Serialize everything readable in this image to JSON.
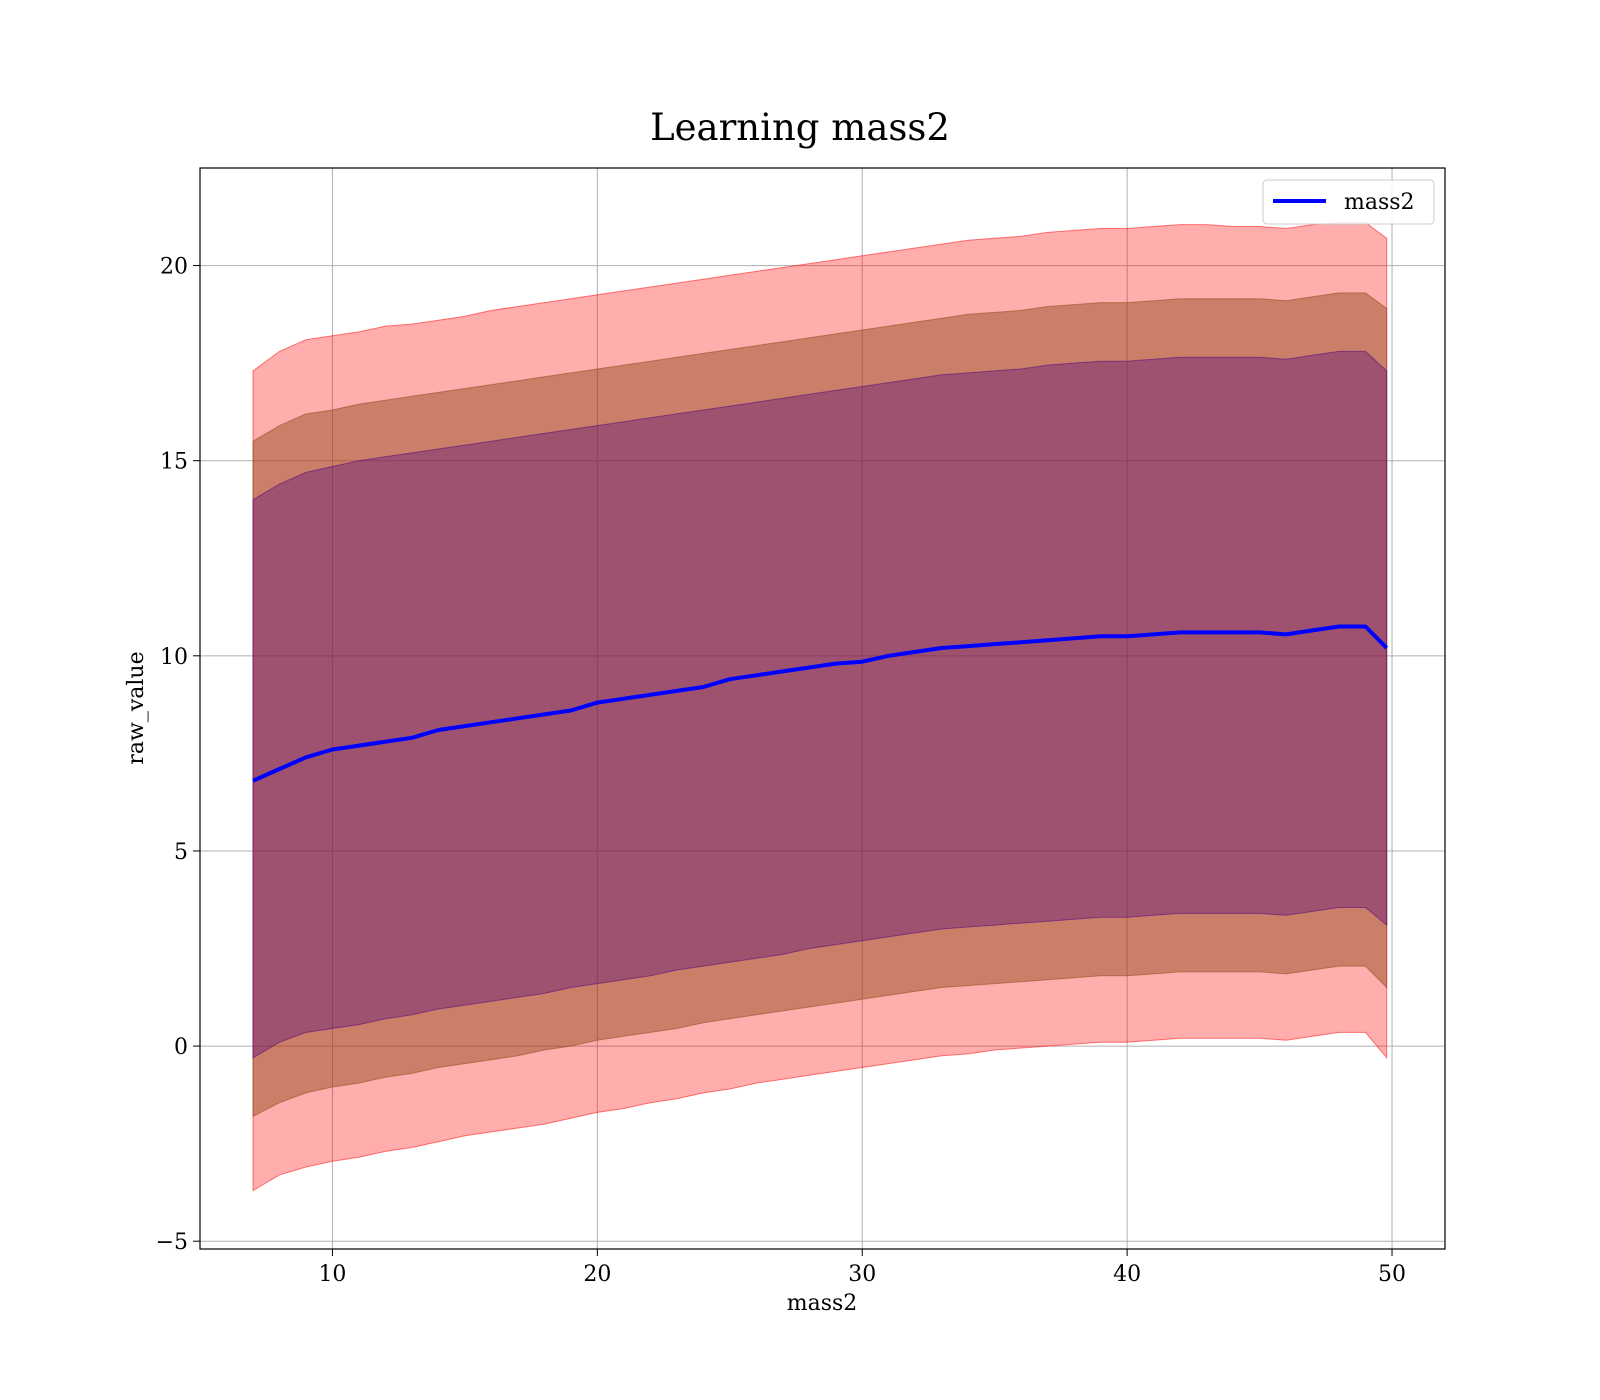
{
  "chart_data": {
    "type": "line",
    "title": "Learning mass2",
    "xlabel": "mass2",
    "ylabel": "raw_value",
    "xlim": [
      5,
      52
    ],
    "ylim": [
      -5.2,
      22.5
    ],
    "x_ticks": [
      10,
      20,
      30,
      40,
      50
    ],
    "y_ticks": [
      -5,
      0,
      5,
      10,
      15,
      20
    ],
    "grid": true,
    "legend": {
      "position": "top-right",
      "entries": [
        "mass2"
      ]
    },
    "series": [
      {
        "name": "mass2",
        "color": "#0000ff",
        "x": [
          7,
          8,
          9,
          10,
          11,
          12,
          13,
          14,
          15,
          16,
          17,
          18,
          19,
          20,
          21,
          22,
          23,
          24,
          25,
          26,
          27,
          28,
          29,
          30,
          31,
          32,
          33,
          34,
          35,
          36,
          37,
          38,
          39,
          40,
          41,
          42,
          43,
          44,
          45,
          46,
          47,
          48,
          49,
          49.8
        ],
        "y": [
          6.8,
          7.1,
          7.4,
          7.6,
          7.7,
          7.8,
          7.9,
          8.1,
          8.2,
          8.3,
          8.4,
          8.5,
          8.6,
          8.8,
          8.9,
          9.0,
          9.1,
          9.2,
          9.4,
          9.5,
          9.6,
          9.7,
          9.8,
          9.85,
          10.0,
          10.1,
          10.2,
          10.25,
          10.3,
          10.35,
          10.4,
          10.45,
          10.5,
          10.5,
          10.55,
          10.6,
          10.6,
          10.6,
          10.6,
          10.55,
          10.65,
          10.75,
          10.75,
          10.2
        ]
      }
    ],
    "bands": [
      {
        "color": "#ff0000",
        "opacity": 0.32,
        "upper": [
          17.3,
          17.8,
          18.1,
          18.2,
          18.3,
          18.45,
          18.5,
          18.6,
          18.7,
          18.85,
          18.95,
          19.05,
          19.15,
          19.25,
          19.35,
          19.45,
          19.55,
          19.65,
          19.75,
          19.85,
          19.95,
          20.05,
          20.15,
          20.25,
          20.35,
          20.45,
          20.55,
          20.65,
          20.7,
          20.75,
          20.85,
          20.9,
          20.95,
          20.95,
          21.0,
          21.05,
          21.05,
          21.0,
          21.0,
          20.95,
          21.05,
          21.1,
          21.1,
          20.7
        ],
        "lower": [
          -3.7,
          -3.3,
          -3.1,
          -2.95,
          -2.85,
          -2.7,
          -2.6,
          -2.45,
          -2.3,
          -2.2,
          -2.1,
          -2.0,
          -1.85,
          -1.7,
          -1.6,
          -1.45,
          -1.35,
          -1.2,
          -1.1,
          -0.95,
          -0.85,
          -0.75,
          -0.65,
          -0.55,
          -0.45,
          -0.35,
          -0.25,
          -0.2,
          -0.1,
          -0.05,
          0.0,
          0.05,
          0.1,
          0.1,
          0.15,
          0.2,
          0.2,
          0.2,
          0.2,
          0.15,
          0.25,
          0.35,
          0.35,
          -0.3
        ]
      },
      {
        "color": "#8b4513",
        "opacity": 0.45,
        "upper": [
          15.5,
          15.9,
          16.2,
          16.3,
          16.45,
          16.55,
          16.65,
          16.75,
          16.85,
          16.95,
          17.05,
          17.15,
          17.25,
          17.35,
          17.45,
          17.55,
          17.65,
          17.75,
          17.85,
          17.95,
          18.05,
          18.15,
          18.25,
          18.35,
          18.45,
          18.55,
          18.65,
          18.75,
          18.8,
          18.85,
          18.95,
          19.0,
          19.05,
          19.05,
          19.1,
          19.15,
          19.15,
          19.15,
          19.15,
          19.1,
          19.2,
          19.3,
          19.3,
          18.9
        ],
        "lower": [
          -1.8,
          -1.45,
          -1.2,
          -1.05,
          -0.95,
          -0.8,
          -0.7,
          -0.55,
          -0.45,
          -0.35,
          -0.25,
          -0.1,
          0.0,
          0.15,
          0.25,
          0.35,
          0.45,
          0.6,
          0.7,
          0.8,
          0.9,
          1.0,
          1.1,
          1.2,
          1.3,
          1.4,
          1.5,
          1.55,
          1.6,
          1.65,
          1.7,
          1.75,
          1.8,
          1.8,
          1.85,
          1.9,
          1.9,
          1.9,
          1.9,
          1.85,
          1.95,
          2.05,
          2.05,
          1.5
        ]
      },
      {
        "color": "#4b0082",
        "opacity": 0.35,
        "upper": [
          14.0,
          14.4,
          14.7,
          14.85,
          15.0,
          15.1,
          15.2,
          15.3,
          15.4,
          15.5,
          15.6,
          15.7,
          15.8,
          15.9,
          16.0,
          16.1,
          16.2,
          16.3,
          16.4,
          16.5,
          16.6,
          16.7,
          16.8,
          16.9,
          17.0,
          17.1,
          17.2,
          17.25,
          17.3,
          17.35,
          17.45,
          17.5,
          17.55,
          17.55,
          17.6,
          17.65,
          17.65,
          17.65,
          17.65,
          17.6,
          17.7,
          17.8,
          17.8,
          17.3
        ],
        "lower": [
          -0.3,
          0.1,
          0.35,
          0.45,
          0.55,
          0.7,
          0.8,
          0.95,
          1.05,
          1.15,
          1.25,
          1.35,
          1.5,
          1.6,
          1.7,
          1.8,
          1.95,
          2.05,
          2.15,
          2.25,
          2.35,
          2.5,
          2.6,
          2.7,
          2.8,
          2.9,
          3.0,
          3.05,
          3.1,
          3.15,
          3.2,
          3.25,
          3.3,
          3.3,
          3.35,
          3.4,
          3.4,
          3.4,
          3.4,
          3.35,
          3.45,
          3.55,
          3.55,
          3.1
        ]
      }
    ]
  }
}
